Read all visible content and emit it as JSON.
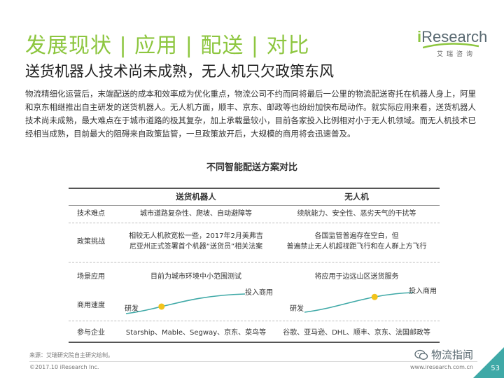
{
  "header": {
    "title": "发展现状 | 应用 | 配送 | 对比",
    "subtitle": "送货机器人技术尚未成熟，无人机只欠政策东风"
  },
  "logo": {
    "i": "i",
    "name": "Research",
    "cn": "艾瑞咨询"
  },
  "intro": "物流精细化运营后，末端配送的成本和效率成为优化重点，物流公司不约而同将最后一公里的物流配送寄托在机器人身上，阿里和京东相继推出自主研发的送货机器人。无人机方面，顺丰、京东、邮政等也纷纷加快布局动作。就实际应用来看，送货机器人技术尚未成熟，最大难点在于城市道路的极其复杂，加上承载量较小，目前各家投入比例相对小于无人机领域。而无人机技术已经相当成熟，目前最大的阻碍来自政策监管，一旦政策放开后，大规模的商用将会迅速普及。",
  "table": {
    "title": "不同智能配送方案对比",
    "col_headers": [
      "送货机器人",
      "无人机"
    ],
    "rows": {
      "tech": {
        "label": "技术难点",
        "robot": "城市道路复杂性、爬坡、自动避障等",
        "drone": "续航能力、安全性、恶劣天气的干扰等"
      },
      "policy": {
        "label": "政策挑战",
        "robot_lines": [
          "相较无人机款宽松一些，2017年2月美弗吉",
          "尼亚州正式签署首个机器“送货员”相关法案"
        ],
        "drone_lines": [
          "各国监管普遍存在空白，但",
          "普遍禁止无人机超视距飞行和在人群上方飞行"
        ]
      },
      "scenario": {
        "label": "场景应用",
        "robot": "目前为城市环境中小范围测试",
        "drone": "将应用于边远山区送货服务"
      },
      "speed": {
        "label": "商用速度",
        "start": "研发",
        "end": "投入商用",
        "robot_progress": 0.3,
        "drone_progress": 0.65
      },
      "companies": {
        "label": "参与企业",
        "robot": "Starship、Mable、Segway、京东、菜鸟等",
        "drone": "谷歌、亚马逊、DHL、顺丰、京东、法国邮政等"
      }
    }
  },
  "footer": {
    "source": "来源：艾瑞研究院自主研究绘制。",
    "copyright": "©2017.10 iResearch Inc.",
    "site": "www.iresearch.com.cn",
    "wechat": "物流指闻",
    "page": "53"
  },
  "colors": {
    "accent": "#8dc63f",
    "curve": "#3fa9a7",
    "dot": "#f2c31b",
    "corner": "#3fa9a7"
  }
}
